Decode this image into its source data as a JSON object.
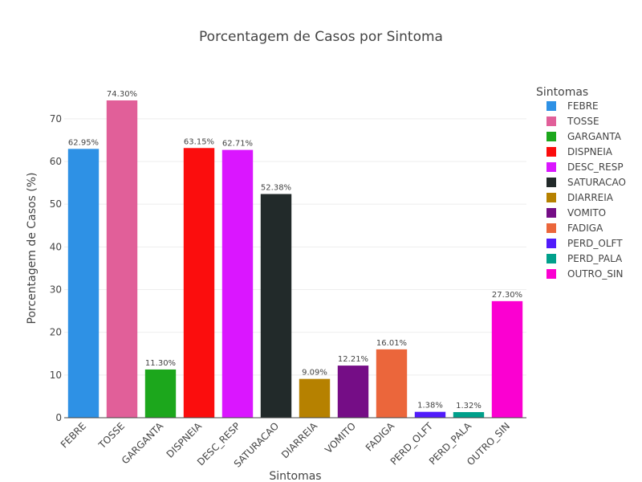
{
  "chart_data": {
    "type": "bar",
    "title": "Porcentagem de Casos por Sintoma",
    "xlabel": "Sintomas",
    "ylabel": "Porcentagem de Casos (%)",
    "ylim": [
      0,
      79
    ],
    "yticks": [
      0,
      10,
      20,
      30,
      40,
      50,
      60,
      70
    ],
    "grid": true,
    "legend_title": "Sintomas",
    "legend_position": "right",
    "categories": [
      "FEBRE",
      "TOSSE",
      "GARGANTA",
      "DISPNEIA",
      "DESC_RESP",
      "SATURACAO",
      "DIARREIA",
      "VOMITO",
      "FADIGA",
      "PERD_OLFT",
      "PERD_PALA",
      "OUTRO_SIN"
    ],
    "values": [
      62.95,
      74.3,
      11.3,
      63.15,
      62.71,
      52.38,
      9.09,
      12.21,
      16.01,
      1.38,
      1.32,
      27.3
    ],
    "labels": [
      "62.95%",
      "74.30%",
      "11.30%",
      "63.15%",
      "62.71%",
      "52.38%",
      "9.09%",
      "12.21%",
      "16.01%",
      "1.38%",
      "1.32%",
      "27.30%"
    ],
    "colors": [
      "#2E91E5",
      "#E15F99",
      "#1CA71C",
      "#FB0D0D",
      "#DA16FF",
      "#222A2A",
      "#B68100",
      "#750D86",
      "#EB663B",
      "#511CFB",
      "#00A08B",
      "#FB00D1"
    ]
  }
}
